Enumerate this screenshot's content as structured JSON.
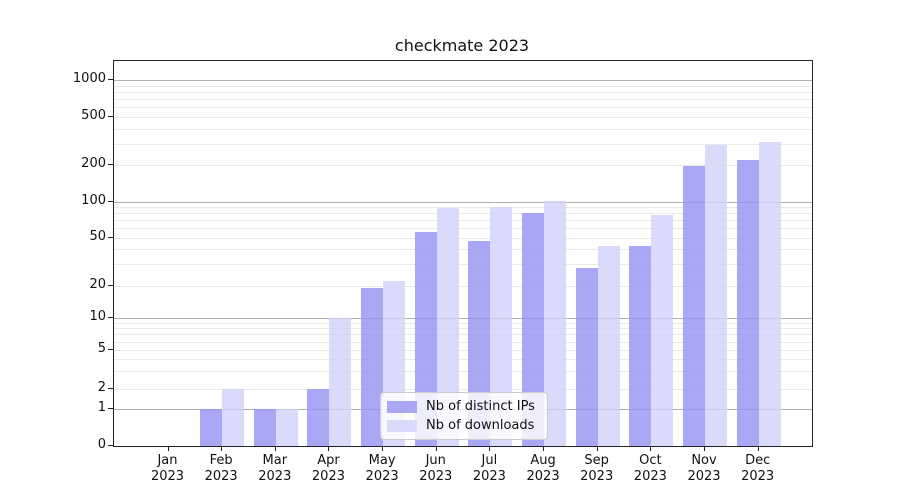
{
  "title": "checkmate 2023",
  "chart_data": {
    "type": "bar",
    "title": "checkmate 2023",
    "categories": [
      "Jan",
      "Feb",
      "Mar",
      "Apr",
      "May",
      "Jun",
      "Jul",
      "Aug",
      "Sep",
      "Oct",
      "Nov",
      "Dec"
    ],
    "year_label": "2023",
    "series": [
      {
        "name": "Nb of distinct IPs",
        "color": "#a8a8f4",
        "values": [
          0,
          1,
          1,
          2,
          19,
          56,
          47,
          80,
          28,
          43,
          196,
          218
        ]
      },
      {
        "name": "Nb of downloads",
        "color": "#dadafb",
        "values": [
          0,
          2,
          1,
          10,
          22,
          88,
          91,
          102,
          43,
          78,
          293,
          312
        ]
      }
    ],
    "yticks": [
      0,
      1,
      2,
      5,
      10,
      20,
      50,
      100,
      200,
      500,
      1000
    ],
    "yscale": "symlog",
    "ylim": [
      0,
      1450
    ],
    "grid": true,
    "legend_position": "lower center"
  },
  "legend": {
    "items": [
      {
        "label": "Nb of distinct IPs",
        "color": "#a8a8f4"
      },
      {
        "label": "Nb of downloads",
        "color": "#dadafb"
      }
    ]
  },
  "colors": {
    "grid_major": "#b0b0b0",
    "grid_minor": "#eaeaea",
    "spine": "#222222",
    "text": "#111111",
    "legend_border": "#cccccc"
  }
}
